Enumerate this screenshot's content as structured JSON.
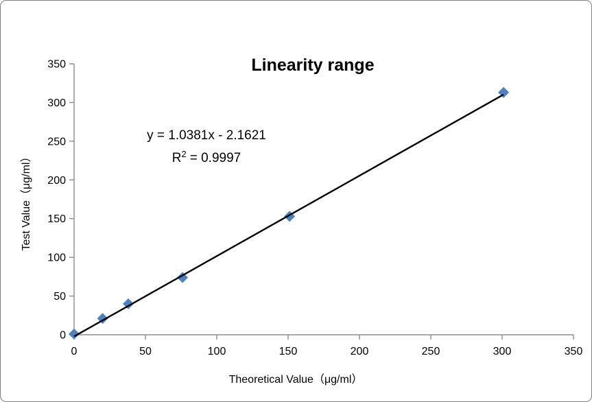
{
  "frame": {
    "background": "#ffffff",
    "border_color": "#7f7f7f"
  },
  "chart_data": {
    "type": "scatter",
    "title": "Linearity range",
    "xlabel": "Theoretical Value（μg/ml）",
    "ylabel": "Test  Value（μg/ml）",
    "xlim": [
      0,
      350
    ],
    "ylim": [
      0,
      350
    ],
    "xticks": [
      0,
      50,
      100,
      150,
      200,
      250,
      300,
      350
    ],
    "yticks": [
      0,
      50,
      100,
      150,
      200,
      250,
      300,
      350
    ],
    "grid": false,
    "legend": "none",
    "colors": {
      "marker": "#4F81BD",
      "trendline": "#000000",
      "axis": "#8C8C8C",
      "text": "#000000"
    },
    "series": [
      {
        "name": "test-values",
        "marker": "diamond",
        "color": "#4F81BD",
        "points": [
          [
            0,
            1
          ],
          [
            20,
            21
          ],
          [
            38,
            40
          ],
          [
            76,
            74
          ],
          [
            151,
            153
          ],
          [
            301,
            313
          ]
        ]
      }
    ],
    "trendline": {
      "slope": 1.0381,
      "intercept": -2.1621,
      "x_range": [
        0,
        301
      ],
      "color": "#000000"
    },
    "annotation": {
      "equation_line1": "y = 1.0381x - 2.1621",
      "r2_prefix": "R",
      "r2_sup": "2",
      "r2_suffix": "= 0.9997",
      "r_squared_value": 0.9997
    }
  }
}
